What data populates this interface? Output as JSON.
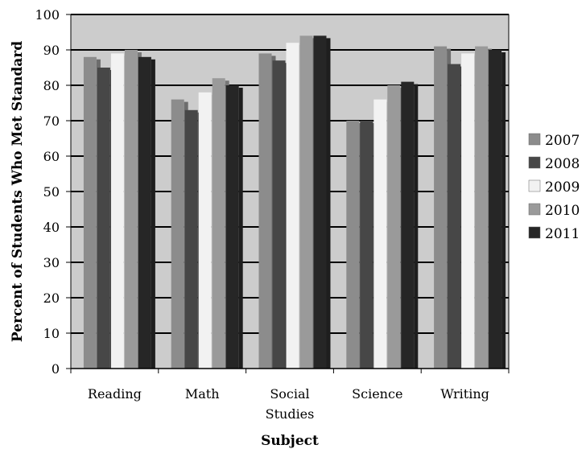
{
  "chart_data": {
    "type": "bar",
    "title": "",
    "xlabel": "Subject",
    "ylabel": "Percent of Students Who Met Standard",
    "ylim": [
      0,
      100
    ],
    "yticks": [
      0,
      10,
      20,
      30,
      40,
      50,
      60,
      70,
      80,
      90,
      100
    ],
    "grid": true,
    "legend_position": "right",
    "categories": [
      [
        "Reading"
      ],
      [
        "Math"
      ],
      [
        "Social",
        "Studies"
      ],
      [
        "Science"
      ],
      [
        "Writing"
      ]
    ],
    "series": [
      {
        "name": "2007",
        "color": "#8c8c8c",
        "values": [
          88,
          76,
          89,
          70,
          91
        ]
      },
      {
        "name": "2008",
        "color": "#474747",
        "values": [
          85,
          73,
          87,
          70,
          86
        ]
      },
      {
        "name": "2009",
        "color": "#f2f2f2",
        "values": [
          89,
          78,
          92,
          76,
          89
        ]
      },
      {
        "name": "2010",
        "color": "#9a9a9a",
        "values": [
          90,
          82,
          94,
          80,
          91
        ]
      },
      {
        "name": "2011",
        "color": "#262626",
        "values": [
          88,
          80,
          94,
          81,
          90
        ]
      }
    ],
    "plot_background": "#cccccc"
  }
}
